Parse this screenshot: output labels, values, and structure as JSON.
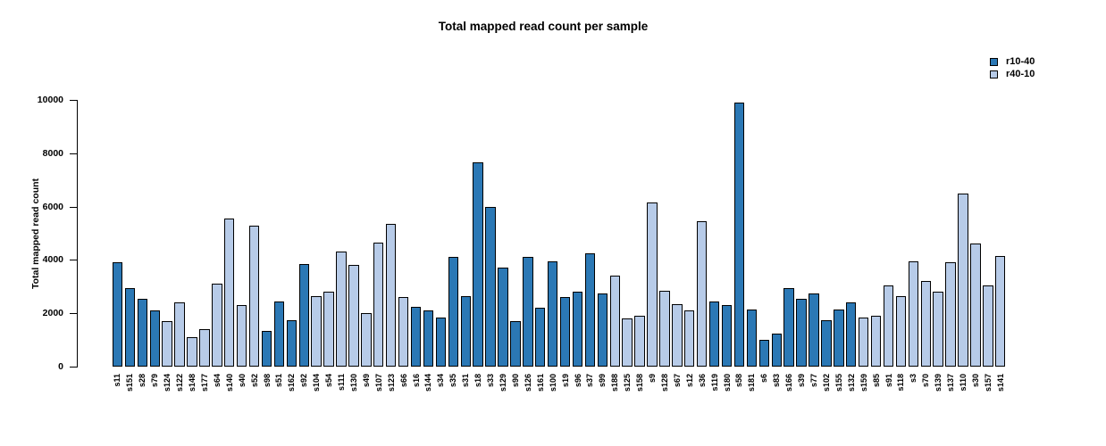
{
  "title": "Total mapped read count per sample",
  "legend": {
    "items": [
      {
        "label": "r10-40",
        "color": "#2B78B5"
      },
      {
        "label": "r40-10",
        "color": "#B7CBE8"
      }
    ]
  },
  "chart_data": {
    "type": "bar",
    "title": "Total mapped read count per sample",
    "xlabel": "",
    "ylabel": "Total mapped read count",
    "ylim": [
      0,
      10000
    ],
    "yticks": [
      0,
      2000,
      4000,
      6000,
      8000,
      10000
    ],
    "grid": false,
    "legend_position": "top-right",
    "series": [
      {
        "name": "r10-40",
        "color": "#2B78B5"
      },
      {
        "name": "r40-10",
        "color": "#B7CBE8"
      }
    ],
    "samples": [
      {
        "name": "s11",
        "value": 3900,
        "group": "r10-40"
      },
      {
        "name": "s151",
        "value": 2950,
        "group": "r10-40"
      },
      {
        "name": "s28",
        "value": 2550,
        "group": "r10-40"
      },
      {
        "name": "s79",
        "value": 2100,
        "group": "r10-40"
      },
      {
        "name": "s124",
        "value": 1700,
        "group": "r40-10"
      },
      {
        "name": "s122",
        "value": 2400,
        "group": "r40-10"
      },
      {
        "name": "s148",
        "value": 1100,
        "group": "r40-10"
      },
      {
        "name": "s177",
        "value": 1400,
        "group": "r40-10"
      },
      {
        "name": "s64",
        "value": 3100,
        "group": "r40-10"
      },
      {
        "name": "s140",
        "value": 5550,
        "group": "r40-10"
      },
      {
        "name": "s40",
        "value": 2300,
        "group": "r40-10"
      },
      {
        "name": "s52",
        "value": 5300,
        "group": "r40-10"
      },
      {
        "name": "s98",
        "value": 1350,
        "group": "r10-40"
      },
      {
        "name": "s51",
        "value": 2450,
        "group": "r10-40"
      },
      {
        "name": "s162",
        "value": 1750,
        "group": "r10-40"
      },
      {
        "name": "s92",
        "value": 3850,
        "group": "r10-40"
      },
      {
        "name": "s104",
        "value": 2650,
        "group": "r40-10"
      },
      {
        "name": "s54",
        "value": 2800,
        "group": "r40-10"
      },
      {
        "name": "s111",
        "value": 4300,
        "group": "r40-10"
      },
      {
        "name": "s130",
        "value": 3800,
        "group": "r40-10"
      },
      {
        "name": "s49",
        "value": 2000,
        "group": "r40-10"
      },
      {
        "name": "s107",
        "value": 4650,
        "group": "r40-10"
      },
      {
        "name": "s123",
        "value": 5350,
        "group": "r40-10"
      },
      {
        "name": "s66",
        "value": 2600,
        "group": "r40-10"
      },
      {
        "name": "s16",
        "value": 2250,
        "group": "r10-40"
      },
      {
        "name": "s144",
        "value": 2100,
        "group": "r10-40"
      },
      {
        "name": "s34",
        "value": 1850,
        "group": "r10-40"
      },
      {
        "name": "s35",
        "value": 4100,
        "group": "r10-40"
      },
      {
        "name": "s31",
        "value": 2650,
        "group": "r10-40"
      },
      {
        "name": "s18",
        "value": 7650,
        "group": "r10-40"
      },
      {
        "name": "s33",
        "value": 6000,
        "group": "r10-40"
      },
      {
        "name": "s129",
        "value": 3700,
        "group": "r10-40"
      },
      {
        "name": "s90",
        "value": 1700,
        "group": "r10-40"
      },
      {
        "name": "s126",
        "value": 4100,
        "group": "r10-40"
      },
      {
        "name": "s161",
        "value": 2200,
        "group": "r10-40"
      },
      {
        "name": "s100",
        "value": 3950,
        "group": "r10-40"
      },
      {
        "name": "s19",
        "value": 2600,
        "group": "r10-40"
      },
      {
        "name": "s96",
        "value": 2800,
        "group": "r10-40"
      },
      {
        "name": "s37",
        "value": 4250,
        "group": "r10-40"
      },
      {
        "name": "s99",
        "value": 2750,
        "group": "r10-40"
      },
      {
        "name": "s188",
        "value": 3400,
        "group": "r40-10"
      },
      {
        "name": "s125",
        "value": 1800,
        "group": "r40-10"
      },
      {
        "name": "s158",
        "value": 1900,
        "group": "r40-10"
      },
      {
        "name": "s9",
        "value": 6150,
        "group": "r40-10"
      },
      {
        "name": "s128",
        "value": 2850,
        "group": "r40-10"
      },
      {
        "name": "s67",
        "value": 2350,
        "group": "r40-10"
      },
      {
        "name": "s12",
        "value": 2100,
        "group": "r40-10"
      },
      {
        "name": "s36",
        "value": 5450,
        "group": "r40-10"
      },
      {
        "name": "s119",
        "value": 2450,
        "group": "r10-40"
      },
      {
        "name": "s180",
        "value": 2300,
        "group": "r10-40"
      },
      {
        "name": "s58",
        "value": 9900,
        "group": "r10-40"
      },
      {
        "name": "s181",
        "value": 2150,
        "group": "r10-40"
      },
      {
        "name": "s6",
        "value": 1000,
        "group": "r10-40"
      },
      {
        "name": "s83",
        "value": 1250,
        "group": "r10-40"
      },
      {
        "name": "s166",
        "value": 2950,
        "group": "r10-40"
      },
      {
        "name": "s39",
        "value": 2550,
        "group": "r10-40"
      },
      {
        "name": "s77",
        "value": 2750,
        "group": "r10-40"
      },
      {
        "name": "s102",
        "value": 1750,
        "group": "r10-40"
      },
      {
        "name": "s155",
        "value": 2150,
        "group": "r10-40"
      },
      {
        "name": "s132",
        "value": 2400,
        "group": "r10-40"
      },
      {
        "name": "s159",
        "value": 1850,
        "group": "r40-10"
      },
      {
        "name": "s85",
        "value": 1900,
        "group": "r40-10"
      },
      {
        "name": "s91",
        "value": 3050,
        "group": "r40-10"
      },
      {
        "name": "s118",
        "value": 2650,
        "group": "r40-10"
      },
      {
        "name": "s3",
        "value": 3950,
        "group": "r40-10"
      },
      {
        "name": "s70",
        "value": 3200,
        "group": "r40-10"
      },
      {
        "name": "s139",
        "value": 2800,
        "group": "r40-10"
      },
      {
        "name": "s137",
        "value": 3900,
        "group": "r40-10"
      },
      {
        "name": "s110",
        "value": 6500,
        "group": "r40-10"
      },
      {
        "name": "s30",
        "value": 4600,
        "group": "r40-10"
      },
      {
        "name": "s157",
        "value": 3050,
        "group": "r40-10"
      },
      {
        "name": "s141",
        "value": 4150,
        "group": "r40-10"
      }
    ]
  }
}
